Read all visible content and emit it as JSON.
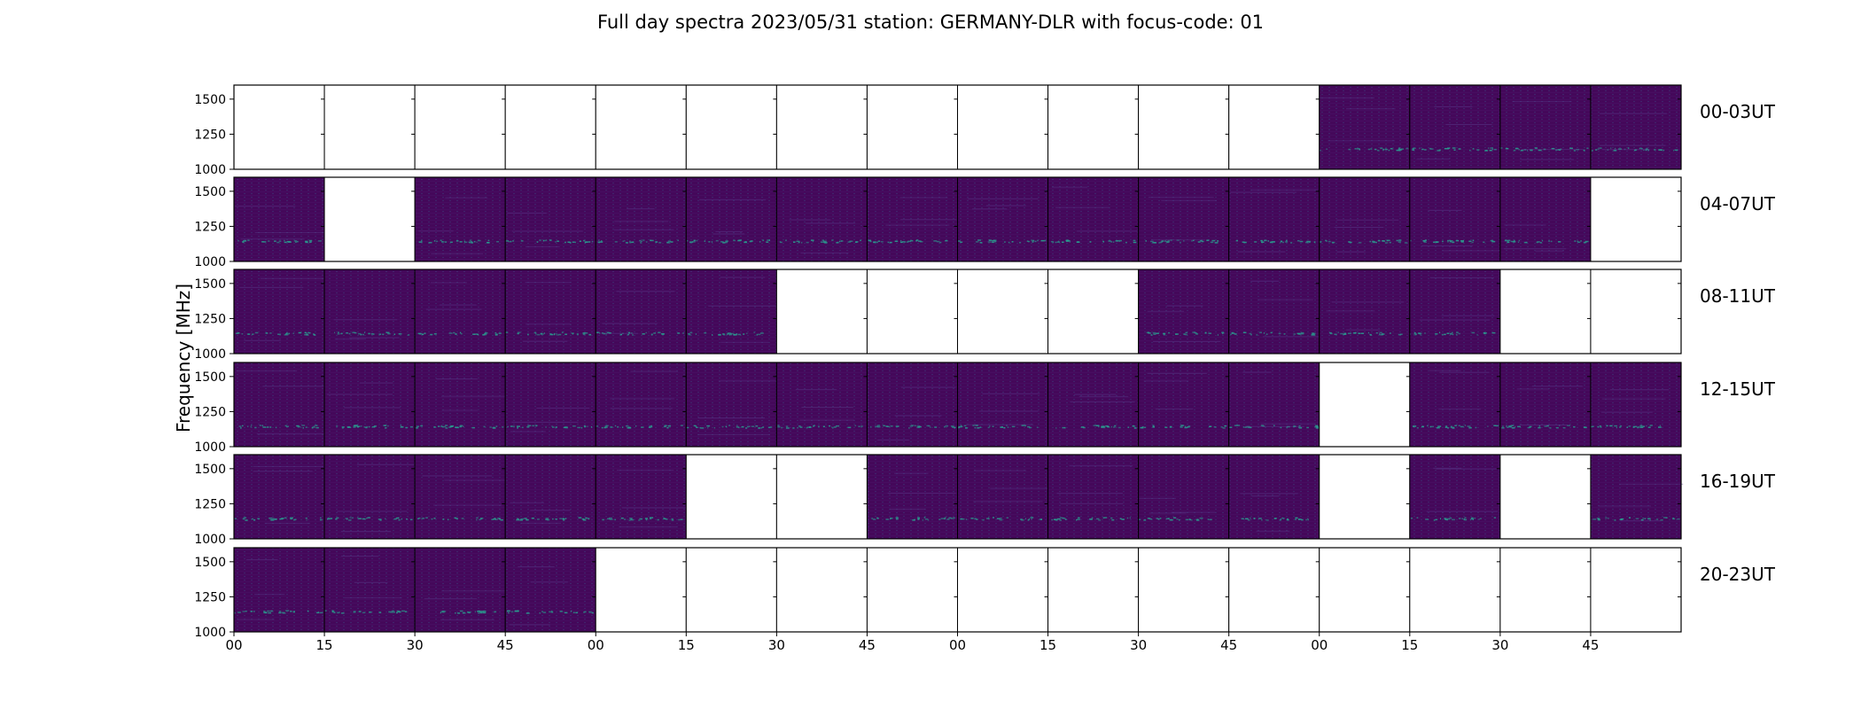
{
  "chart_data": {
    "type": "heatmap",
    "title": "Full day spectra 2023/05/31 station: GERMANY-DLR with focus-code: 01",
    "ylabel": "Frequency [MHz]",
    "yticks": [
      "1000",
      "1250",
      "1500"
    ],
    "ylim": [
      1000,
      1600
    ],
    "xticks": [
      "00",
      "15",
      "30",
      "45",
      "00",
      "15",
      "30",
      "45",
      "00",
      "15",
      "30",
      "45",
      "00",
      "15",
      "30",
      "45"
    ],
    "colormap": {
      "background": "#44085a",
      "background_dark": "#3a0650",
      "signal": "#2a9b8e",
      "empty": "#ffffff"
    },
    "rows": [
      {
        "label": "00-03UT",
        "filled": [
          0,
          0,
          0,
          0,
          0,
          0,
          0,
          0,
          0,
          0,
          0,
          0,
          1,
          1,
          1,
          1
        ]
      },
      {
        "label": "04-07UT",
        "filled": [
          1,
          0,
          1,
          1,
          1,
          1,
          1,
          1,
          1,
          1,
          1,
          1,
          1,
          1,
          1,
          0
        ]
      },
      {
        "label": "08-11UT",
        "filled": [
          1,
          1,
          1,
          1,
          1,
          1,
          0,
          0,
          0,
          0,
          1,
          1,
          1,
          1,
          0,
          0
        ]
      },
      {
        "label": "12-15UT",
        "filled": [
          1,
          1,
          1,
          1,
          1,
          1,
          1,
          1,
          1,
          1,
          1,
          1,
          0,
          1,
          1,
          1
        ]
      },
      {
        "label": "16-19UT",
        "filled": [
          1,
          1,
          1,
          1,
          1,
          0,
          0,
          1,
          1,
          1,
          1,
          1,
          0,
          1,
          0,
          1
        ]
      },
      {
        "label": "20-23UT",
        "filled": [
          1,
          1,
          1,
          1,
          0,
          0,
          0,
          0,
          0,
          0,
          0,
          0,
          0,
          0,
          0,
          0
        ]
      }
    ]
  }
}
